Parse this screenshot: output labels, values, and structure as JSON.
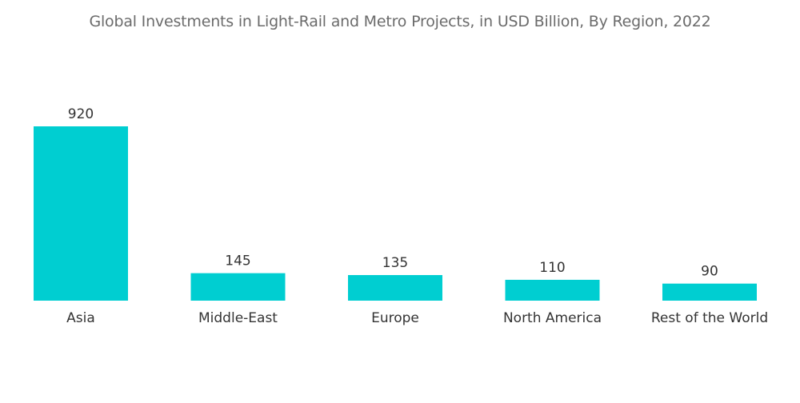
{
  "colors": {
    "bar": "#00CED1",
    "title": "#6b6b6b",
    "text": "#333333"
  },
  "chart_data": {
    "type": "bar",
    "title": "Global Investments in Light-Rail and Metro Projects, in USD Billion, By Region, 2022",
    "categories": [
      "Asia",
      "Middle-East",
      "Europe",
      "North America",
      "Rest of the World"
    ],
    "values": [
      920,
      145,
      135,
      110,
      90
    ],
    "data_labels": [
      "920",
      "145",
      "135",
      "110",
      "90"
    ],
    "xlabel": "",
    "ylabel": "",
    "ylim": [
      0,
      920
    ],
    "grid": false,
    "legend": "none"
  }
}
